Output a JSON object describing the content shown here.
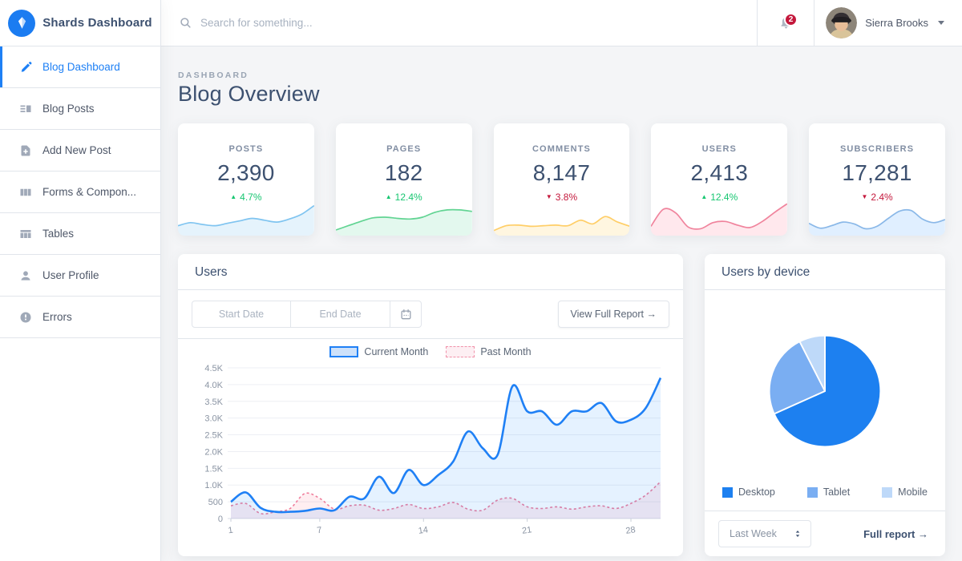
{
  "brand": {
    "name": "Shards Dashboard"
  },
  "topbar": {
    "search_placeholder": "Search for something...",
    "notifications_count": "2",
    "user_name": "Sierra Brooks"
  },
  "sidebar": {
    "items": [
      {
        "icon": "pencil-icon",
        "label": "Blog Dashboard",
        "active": true
      },
      {
        "icon": "blog-posts-icon",
        "label": "Blog Posts",
        "active": false
      },
      {
        "icon": "add-post-icon",
        "label": "Add New Post",
        "active": false
      },
      {
        "icon": "components-icon",
        "label": "Forms & Compon...",
        "active": false
      },
      {
        "icon": "tables-icon",
        "label": "Tables",
        "active": false
      },
      {
        "icon": "user-icon",
        "label": "User Profile",
        "active": false
      },
      {
        "icon": "errors-icon",
        "label": "Errors",
        "active": false
      }
    ]
  },
  "page": {
    "overline": "DASHBOARD",
    "title": "Blog Overview"
  },
  "stats": [
    {
      "label": "POSTS",
      "value": "2,390",
      "delta": "4.7%",
      "direction": "up",
      "line_color": "#7fc4f0",
      "fill_color": "rgba(127,196,240,0.2)",
      "sparkline": [
        2.2,
        3.2,
        2.6,
        2.2,
        3.0,
        3.8,
        4.6,
        4.0,
        3.4,
        4.4,
        6.0,
        8.8
      ]
    },
    {
      "label": "PAGES",
      "value": "182",
      "delta": "12.4%",
      "direction": "up",
      "line_color": "#62d493",
      "fill_color": "rgba(23,198,113,0.12)",
      "sparkline": [
        0.8,
        2.2,
        3.6,
        4.8,
        5.0,
        4.6,
        4.4,
        5.0,
        6.6,
        7.4,
        7.4,
        6.9
      ]
    },
    {
      "label": "COMMENTS",
      "value": "8,147",
      "delta": "3.8%",
      "direction": "down",
      "line_color": "#ffce67",
      "fill_color": "rgba(255,180,0,0.12)",
      "sparkline": [
        0.6,
        2.2,
        2.4,
        2.0,
        2.2,
        2.4,
        2.2,
        4.0,
        2.8,
        5.2,
        3.4,
        2.0
      ]
    },
    {
      "label": "USERS",
      "value": "2,413",
      "delta": "12.4%",
      "direction": "up",
      "line_color": "#f0849d",
      "fill_color": "rgba(255,65,105,0.12)",
      "sparkline": [
        2.0,
        7.6,
        6.4,
        1.8,
        1.2,
        3.2,
        3.6,
        2.4,
        1.6,
        3.6,
        6.6,
        9.4
      ]
    },
    {
      "label": "SUBSCRIBERS",
      "value": "17,281",
      "delta": "2.4%",
      "direction": "down",
      "line_color": "#8ab8e8",
      "fill_color": "rgba(0,123,255,0.12)",
      "sparkline": [
        3.0,
        1.4,
        2.2,
        3.4,
        2.8,
        1.2,
        2.0,
        4.6,
        7.0,
        7.2,
        4.4,
        3.2,
        4.2
      ]
    }
  ],
  "users_card": {
    "title": "Users",
    "start_date_placeholder": "Start Date",
    "end_date_placeholder": "End Date",
    "report_button": "View Full Report →"
  },
  "device_card": {
    "title": "Users by device",
    "select_value": "Last Week",
    "link": "Full report →"
  },
  "chart_data": [
    {
      "type": "line",
      "title": "Users",
      "x": [
        1,
        2,
        3,
        4,
        5,
        6,
        7,
        8,
        9,
        10,
        11,
        12,
        13,
        14,
        15,
        16,
        17,
        18,
        19,
        20,
        21,
        22,
        23,
        24,
        25,
        26,
        27,
        28,
        29,
        30
      ],
      "series": [
        {
          "name": "Current Month",
          "color": "#1f80f5",
          "fill": "rgba(0,123,255,0.10)",
          "dashed": false,
          "values": [
            500,
            780,
            320,
            200,
            200,
            230,
            300,
            250,
            650,
            600,
            1250,
            760,
            1450,
            1000,
            1300,
            1700,
            2600,
            2100,
            1900,
            3950,
            3200,
            3200,
            2800,
            3200,
            3200,
            3450,
            2900,
            2950,
            3300,
            4200
          ]
        },
        {
          "name": "Past Month",
          "color": "#ef7d9b",
          "fill": "rgba(255,65,105,0.09)",
          "dashed": true,
          "values": [
            380,
            450,
            150,
            200,
            300,
            750,
            600,
            280,
            380,
            400,
            250,
            300,
            420,
            300,
            350,
            480,
            280,
            250,
            550,
            600,
            350,
            300,
            350,
            280,
            350,
            380,
            300,
            450,
            700,
            1100
          ]
        }
      ],
      "ylim": [
        0,
        4500
      ],
      "ytick_labels": [
        "0",
        "500",
        "1.0K",
        "1.5K",
        "2.0K",
        "2.5K",
        "3.0K",
        "3.5K",
        "4.0K",
        "4.5K"
      ],
      "xticks": [
        1,
        7,
        14,
        21,
        28
      ],
      "grid": true,
      "legend_position": "top"
    },
    {
      "type": "pie",
      "title": "Users by device",
      "labels": [
        "Desktop",
        "Tablet",
        "Mobile"
      ],
      "values": [
        68.3,
        24.2,
        7.5
      ],
      "colors": [
        "#1d80f0",
        "#7aaef2",
        "#bed9f9"
      ],
      "legend_position": "bottom"
    }
  ]
}
